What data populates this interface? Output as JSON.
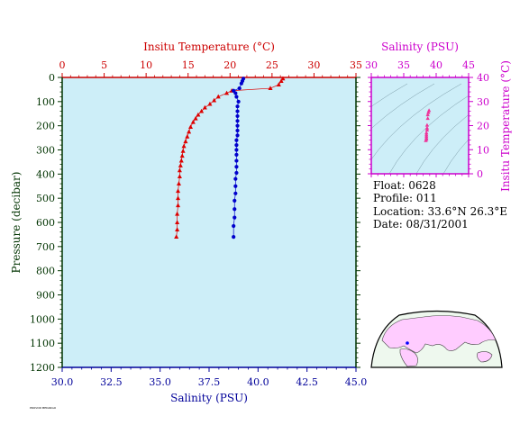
{
  "chart_data": [
    {
      "type": "line",
      "title": "",
      "ylabel": "Pressure (decibar)",
      "ylim": [
        0,
        1200
      ],
      "y_inverted": true,
      "y_ticks": [
        "0",
        "100",
        "200",
        "300",
        "400",
        "500",
        "600",
        "700",
        "800",
        "900",
        "1000",
        "1100",
        "1200"
      ],
      "x_top_label": "Insitu Temperature (°C)",
      "x_top_lim": [
        0,
        35
      ],
      "x_top_ticks": [
        "0",
        "5",
        "10",
        "15",
        "20",
        "25",
        "30",
        "35"
      ],
      "x_bottom_label": "Salinity (PSU)",
      "x_bottom_lim": [
        30,
        45
      ],
      "x_bottom_ticks": [
        "30.0",
        "32.5",
        "35.0",
        "37.5",
        "40.0",
        "42.5",
        "45.0"
      ],
      "grid": false,
      "series": [
        {
          "axis": "top",
          "marker": "triangle",
          "color": "#dd0000",
          "points": [
            [
              26.3,
              5
            ],
            [
              26.1,
              15
            ],
            [
              25.8,
              30
            ],
            [
              24.8,
              45
            ],
            [
              20.2,
              55
            ],
            [
              19.6,
              65
            ],
            [
              18.6,
              80
            ],
            [
              18.1,
              95
            ],
            [
              17.6,
              110
            ],
            [
              17.0,
              125
            ],
            [
              16.6,
              140
            ],
            [
              16.2,
              155
            ],
            [
              15.9,
              170
            ],
            [
              15.6,
              185
            ],
            [
              15.3,
              205
            ],
            [
              15.1,
              225
            ],
            [
              14.9,
              245
            ],
            [
              14.7,
              265
            ],
            [
              14.5,
              285
            ],
            [
              14.4,
              305
            ],
            [
              14.3,
              325
            ],
            [
              14.2,
              345
            ],
            [
              14.1,
              365
            ],
            [
              14.0,
              385
            ],
            [
              14.0,
              410
            ],
            [
              13.9,
              440
            ],
            [
              13.8,
              470
            ],
            [
              13.8,
              500
            ],
            [
              13.8,
              530
            ],
            [
              13.7,
              565
            ],
            [
              13.7,
              600
            ],
            [
              13.7,
              630
            ],
            [
              13.6,
              660
            ]
          ]
        },
        {
          "axis": "bottom",
          "marker": "circle",
          "color": "#0000cc",
          "points": [
            [
              39.25,
              5
            ],
            [
              39.2,
              15
            ],
            [
              39.15,
              25
            ],
            [
              39.05,
              45
            ],
            [
              38.75,
              55
            ],
            [
              38.85,
              65
            ],
            [
              38.9,
              80
            ],
            [
              39.0,
              100
            ],
            [
              38.95,
              120
            ],
            [
              38.95,
              140
            ],
            [
              38.95,
              160
            ],
            [
              38.95,
              180
            ],
            [
              38.95,
              200
            ],
            [
              38.95,
              220
            ],
            [
              38.95,
              240
            ],
            [
              38.9,
              260
            ],
            [
              38.9,
              280
            ],
            [
              38.9,
              300
            ],
            [
              38.9,
              320
            ],
            [
              38.9,
              345
            ],
            [
              38.9,
              370
            ],
            [
              38.9,
              395
            ],
            [
              38.85,
              420
            ],
            [
              38.85,
              450
            ],
            [
              38.85,
              480
            ],
            [
              38.8,
              510
            ],
            [
              38.8,
              545
            ],
            [
              38.8,
              580
            ],
            [
              38.75,
              615
            ],
            [
              38.75,
              660
            ]
          ]
        }
      ]
    },
    {
      "type": "scatter",
      "title": "",
      "x_label": "Salinity (PSU)",
      "x_lim": [
        30,
        45
      ],
      "x_ticks": [
        "30",
        "35",
        "40",
        "45"
      ],
      "y_label": "Insitu Temperature (°C)",
      "y_lim": [
        0,
        40
      ],
      "y_ticks": [
        "0",
        "10",
        "20",
        "30",
        "40"
      ],
      "series": [
        {
          "marker": "triangle",
          "color": "#ee3399",
          "points": [
            [
              38.9,
              26.3
            ],
            [
              38.8,
              25.5
            ],
            [
              38.7,
              24.5
            ],
            [
              38.7,
              23.0
            ],
            [
              38.6,
              20.2
            ],
            [
              38.6,
              19.0
            ],
            [
              38.6,
              18.2
            ],
            [
              38.5,
              17.0
            ],
            [
              38.5,
              16.2
            ],
            [
              38.5,
              15.5
            ],
            [
              38.5,
              14.8
            ],
            [
              38.5,
              14.3
            ],
            [
              38.4,
              13.8
            ]
          ]
        }
      ]
    }
  ],
  "info": {
    "float": "Float:  0628",
    "profile": "Profile:  011",
    "location": "Location:  33.6°N  26.3°E",
    "date": "Date:  08/31/2001"
  },
  "footer": {
    "tiny_text": "PROVOR MEDARGO"
  },
  "colors": {
    "plot_bg": "#cdeef8",
    "temperature_axis": "#cc0000",
    "salinity_axis": "#000099",
    "pressure_axis": "#003300",
    "inset_axis": "#cc00cc",
    "temperature_marker": "#dd0000",
    "salinity_marker": "#0000cc",
    "ts_marker": "#ee3399",
    "map_land": "#ffccff",
    "map_sea": "#eef8ee",
    "location_marker": "#0000ff"
  }
}
